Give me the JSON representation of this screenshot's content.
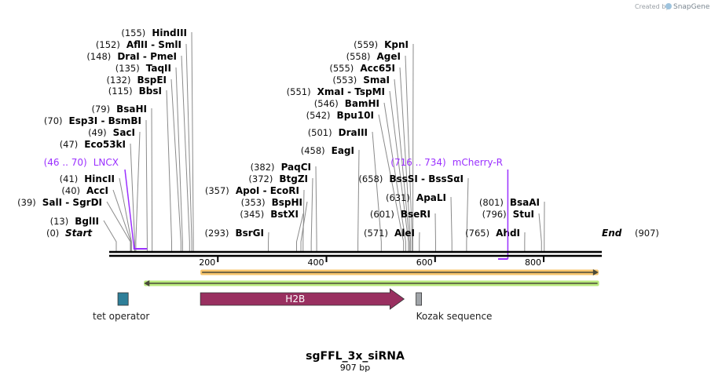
{
  "watermark": {
    "prefix": "Created by",
    "brand": "SnapGene"
  },
  "map": {
    "title": "sgFFL_3x_siRNA",
    "length_label": "907 bp",
    "length_bp": 907,
    "start": {
      "pos_label": "(0)",
      "label": "Start"
    },
    "end": {
      "pos_label": "(907)",
      "label": "End"
    },
    "ticks": [
      "200",
      "400",
      "600",
      "800"
    ]
  },
  "enzymes": [
    {
      "pos": 155,
      "pos_label": "(155)",
      "name": "HindIII"
    },
    {
      "pos": 152,
      "pos_label": "(152)",
      "name": "AflII  - SmlI"
    },
    {
      "pos": 148,
      "pos_label": "(148)",
      "name": "DraI  - PmeI"
    },
    {
      "pos": 135,
      "pos_label": "(135)",
      "name": "TaqII"
    },
    {
      "pos": 132,
      "pos_label": "(132)",
      "name": "BspEI"
    },
    {
      "pos": 115,
      "pos_label": "(115)",
      "name": "BbsI"
    },
    {
      "pos": 79,
      "pos_label": "(79)",
      "name": "BsaHI"
    },
    {
      "pos": 70,
      "pos_label": "(70)",
      "name": "Esp3I  - BsmBI"
    },
    {
      "pos": 49,
      "pos_label": "(49)",
      "name": "SacI"
    },
    {
      "pos": 47,
      "pos_label": "(47)",
      "name": "Eco53kI"
    },
    {
      "pos": 41,
      "pos_label": "(41)",
      "name": "HincII"
    },
    {
      "pos": 40,
      "pos_label": "(40)",
      "name": "AccI"
    },
    {
      "pos": 39,
      "pos_label": "(39)",
      "name": "SalI  - SgrDI"
    },
    {
      "pos": 13,
      "pos_label": "(13)",
      "name": "BglII"
    },
    {
      "pos": 293,
      "pos_label": "(293)",
      "name": "BsrGI"
    },
    {
      "pos": 345,
      "pos_label": "(345)",
      "name": "BstXI"
    },
    {
      "pos": 353,
      "pos_label": "(353)",
      "name": "BspHI"
    },
    {
      "pos": 357,
      "pos_label": "(357)",
      "name": "ApoI  - EcoRI"
    },
    {
      "pos": 372,
      "pos_label": "(372)",
      "name": "BtgZI"
    },
    {
      "pos": 382,
      "pos_label": "(382)",
      "name": "PaqCI"
    },
    {
      "pos": 458,
      "pos_label": "(458)",
      "name": "EagI"
    },
    {
      "pos": 501,
      "pos_label": "(501)",
      "name": "DraIII"
    },
    {
      "pos": 542,
      "pos_label": "(542)",
      "name": "Bpu10I"
    },
    {
      "pos": 546,
      "pos_label": "(546)",
      "name": "BamHI"
    },
    {
      "pos": 551,
      "pos_label": "(551)",
      "name": "XmaI  - TspMI"
    },
    {
      "pos": 553,
      "pos_label": "(553)",
      "name": "SmaI"
    },
    {
      "pos": 555,
      "pos_label": "(555)",
      "name": "Acc65I"
    },
    {
      "pos": 558,
      "pos_label": "(558)",
      "name": "AgeI"
    },
    {
      "pos": 559,
      "pos_label": "(559)",
      "name": "KpnI"
    },
    {
      "pos": 658,
      "pos_label": "(658)",
      "name": "BssSI  - BssSαI"
    },
    {
      "pos": 631,
      "pos_label": "(631)",
      "name": "ApaLI"
    },
    {
      "pos": 601,
      "pos_label": "(601)",
      "name": "BseRI"
    },
    {
      "pos": 571,
      "pos_label": "(571)",
      "name": "AleI"
    },
    {
      "pos": 765,
      "pos_label": "(765)",
      "name": "AhdI"
    },
    {
      "pos": 796,
      "pos_label": "(796)",
      "name": "StuI"
    },
    {
      "pos": 801,
      "pos_label": "(801)",
      "name": "BsaAI"
    }
  ],
  "primers": [
    {
      "range_label": "(46 .. 70)",
      "name": "LNCX",
      "start": 46,
      "end": 70,
      "color": "#9b30ff"
    },
    {
      "range_label": "(716 .. 734)",
      "name": "mCherry-R",
      "start": 716,
      "end": 734,
      "color": "#9b30ff"
    }
  ],
  "features": [
    {
      "name": "tet operator",
      "start": 16,
      "end": 35,
      "color": "#2e7f99",
      "type": "box"
    },
    {
      "name": "H2B",
      "start": 168,
      "end": 543,
      "color": "#993060",
      "type": "arrow-right"
    },
    {
      "name": "Kozak sequence",
      "start": 565,
      "end": 575,
      "color": "#a0a4a8",
      "type": "box"
    }
  ],
  "orfs": [
    {
      "start": 168,
      "end": 901,
      "direction": "forward",
      "color": "#f7c46c"
    },
    {
      "start": 64,
      "end": 902,
      "direction": "reverse",
      "color": "#b9ea7c"
    }
  ]
}
